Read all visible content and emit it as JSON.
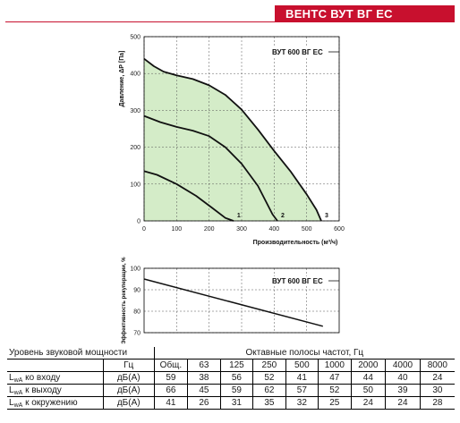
{
  "header": {
    "title": "ВЕНТС ВУТ ВГ ЕС"
  },
  "chart_data": [
    {
      "type": "line",
      "title": "ВУТ 600 ВГ ЕС",
      "xlabel": "Производительность (м³/ч)",
      "ylabel": "Давление, ΔР [Па]",
      "xlim": [
        0,
        600
      ],
      "ylim": [
        0,
        500
      ],
      "xticks": [
        "0",
        "100",
        "200",
        "300",
        "400",
        "500",
        "600"
      ],
      "yticks": [
        "0",
        "100",
        "200",
        "300",
        "400",
        "500"
      ],
      "grid": true,
      "fill_color": "#d4ecc8",
      "series": [
        {
          "name": "1",
          "x": [
            0,
            40,
            100,
            160,
            210,
            250,
            275
          ],
          "y": [
            135,
            125,
            100,
            68,
            35,
            8,
            0
          ]
        },
        {
          "name": "2",
          "x": [
            0,
            50,
            100,
            150,
            200,
            250,
            300,
            350,
            395,
            410
          ],
          "y": [
            285,
            268,
            255,
            245,
            230,
            200,
            155,
            95,
            18,
            0
          ]
        },
        {
          "name": "3",
          "x": [
            0,
            30,
            60,
            100,
            150,
            200,
            250,
            300,
            350,
            400,
            450,
            500,
            530,
            545
          ],
          "y": [
            440,
            420,
            405,
            395,
            385,
            368,
            342,
            302,
            248,
            190,
            135,
            72,
            30,
            0
          ]
        }
      ]
    },
    {
      "type": "line",
      "title": "ВУТ 600 ВГ ЕС",
      "ylabel": "Эффективность рекуперации, %",
      "xlim": [
        0,
        600
      ],
      "ylim": [
        70,
        100
      ],
      "yticks": [
        "70",
        "80",
        "90",
        "100"
      ],
      "grid": true,
      "series": [
        {
          "name": "",
          "x": [
            0,
            550
          ],
          "y": [
            95,
            73
          ]
        }
      ]
    }
  ],
  "sound_table": {
    "title": "Уровень звуковой мощности",
    "group_header": "Октавные полосы частот, Гц",
    "hz_label": "Гц",
    "columns": [
      "Общ.",
      "63",
      "125",
      "250",
      "500",
      "1000",
      "2000",
      "4000",
      "8000"
    ],
    "rows": [
      {
        "label_main": "L",
        "label_sub": "wA",
        "label_rest": " ко входу",
        "unit": "дБ(А)",
        "values": [
          "59",
          "38",
          "56",
          "52",
          "41",
          "47",
          "44",
          "40",
          "24"
        ]
      },
      {
        "label_main": "L",
        "label_sub": "wA",
        "label_rest": " к выходу",
        "unit": "дБ(А)",
        "values": [
          "66",
          "45",
          "59",
          "62",
          "57",
          "52",
          "50",
          "39",
          "30"
        ]
      },
      {
        "label_main": "L",
        "label_sub": "wA",
        "label_rest": " к окружению",
        "unit": "дБ(А)",
        "values": [
          "41",
          "26",
          "31",
          "35",
          "32",
          "25",
          "24",
          "24",
          "28"
        ]
      }
    ]
  }
}
